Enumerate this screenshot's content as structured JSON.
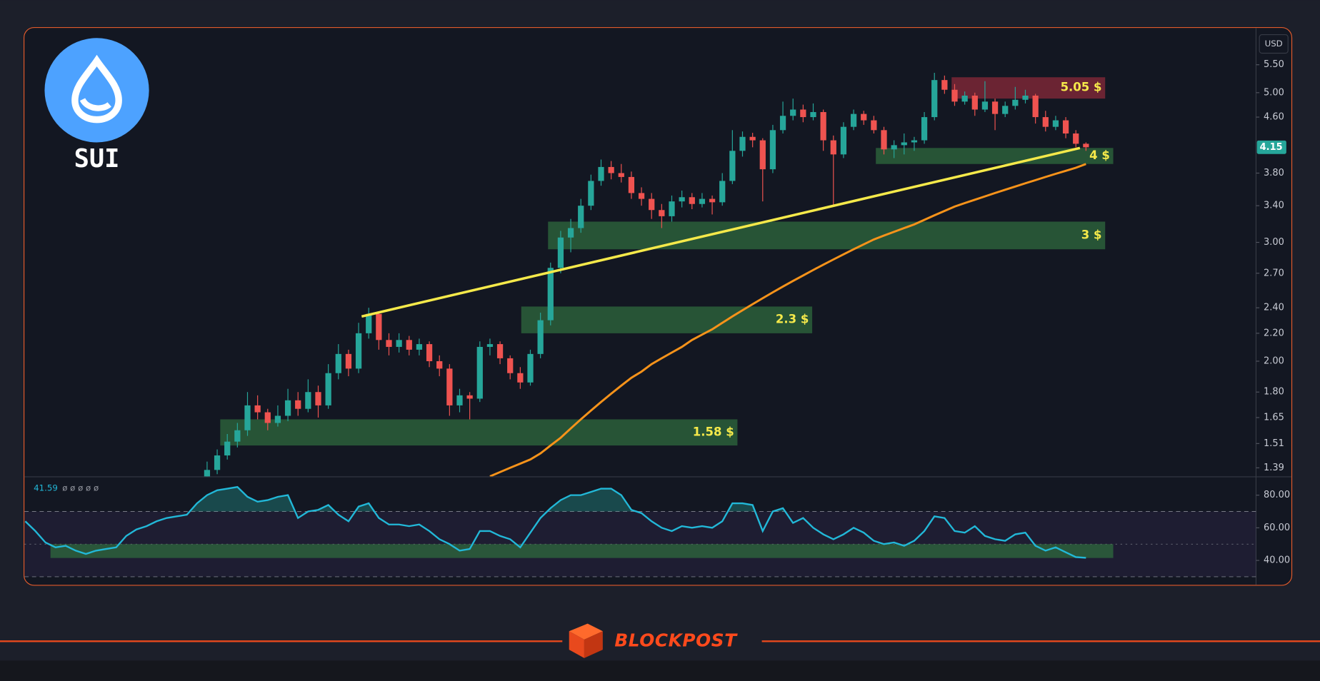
{
  "chart_data": [
    {
      "type": "candlestick",
      "currency": "USD",
      "log_scale": true,
      "ylim": [
        1.35,
        6.2
      ],
      "yticks": [
        {
          "value": 5.5,
          "label": "5.50"
        },
        {
          "value": 5,
          "label": "5.00"
        },
        {
          "value": 4.6,
          "label": "4.60"
        },
        {
          "value": 3.8,
          "label": "3.80"
        },
        {
          "value": 3.4,
          "label": "3.40"
        },
        {
          "value": 3,
          "label": "3.00"
        },
        {
          "value": 2.7,
          "label": "2.70"
        },
        {
          "value": 2.4,
          "label": "2.40"
        },
        {
          "value": 2.2,
          "label": "2.20"
        },
        {
          "value": 2,
          "label": "2.00"
        },
        {
          "value": 1.8,
          "label": "1.80"
        },
        1.65,
        1.51,
        1.39
      ],
      "last_price": 4.15,
      "last_price_color": "#26a69a",
      "up_color": "#26a69a",
      "down_color": "#ef5350",
      "open": [
        null,
        null,
        null,
        null,
        null,
        null,
        null,
        null,
        null,
        null,
        null,
        null,
        null,
        null,
        null,
        null,
        null,
        null,
        1.32,
        1.38,
        1.45,
        1.52,
        1.58,
        1.72,
        1.68,
        1.62,
        1.66,
        1.75,
        1.7,
        1.8,
        1.72,
        1.92,
        2.05,
        1.95,
        2.2,
        2.35,
        2.15,
        2.1,
        2.15,
        2.08,
        2.12,
        2.0,
        1.95,
        1.72,
        1.78,
        1.76,
        2.1,
        2.12,
        2.02,
        1.92,
        1.86,
        2.05,
        2.3,
        2.75,
        3.05,
        3.15,
        3.4,
        3.7,
        3.88,
        3.8,
        3.75,
        3.55,
        3.48,
        3.35,
        3.28,
        3.45,
        3.5,
        3.42,
        3.48,
        3.44,
        3.7,
        4.1,
        4.3,
        4.25,
        3.85,
        4.4,
        4.62,
        4.72,
        4.6,
        4.68,
        4.25,
        4.05,
        4.45,
        4.65,
        4.55,
        4.4,
        4.12,
        4.18,
        4.22,
        4.25,
        4.6,
        5.22,
        5.05,
        4.85,
        4.95,
        4.72,
        4.85,
        4.65,
        4.78,
        4.88,
        4.95,
        4.6,
        4.45,
        4.55,
        4.35,
        4.2
      ],
      "high": [
        null,
        null,
        null,
        null,
        null,
        null,
        null,
        null,
        null,
        null,
        null,
        null,
        null,
        null,
        null,
        null,
        null,
        null,
        1.42,
        1.48,
        1.56,
        1.62,
        1.8,
        1.78,
        1.7,
        1.72,
        1.82,
        1.8,
        1.88,
        1.84,
        1.98,
        2.12,
        2.08,
        2.28,
        2.4,
        2.36,
        2.2,
        2.2,
        2.18,
        2.16,
        2.14,
        2.04,
        1.98,
        1.82,
        1.8,
        2.14,
        2.16,
        2.14,
        2.04,
        1.96,
        2.08,
        2.36,
        2.8,
        3.12,
        3.25,
        3.48,
        3.78,
        3.98,
        3.96,
        3.92,
        3.82,
        3.62,
        3.55,
        3.42,
        3.52,
        3.58,
        3.55,
        3.55,
        3.52,
        3.8,
        4.4,
        4.38,
        4.36,
        4.28,
        4.48,
        4.85,
        4.9,
        4.8,
        4.82,
        4.72,
        4.32,
        4.52,
        4.72,
        4.7,
        4.62,
        4.45,
        4.25,
        4.35,
        4.3,
        4.68,
        5.35,
        5.3,
        5.15,
        5.02,
        5.0,
        5.2,
        4.9,
        4.85,
        5.1,
        5.05,
        4.98,
        4.7,
        4.62,
        4.6,
        4.4,
        4.22
      ],
      "low": [
        null,
        null,
        null,
        null,
        null,
        null,
        null,
        null,
        null,
        null,
        null,
        null,
        null,
        null,
        null,
        null,
        null,
        null,
        1.3,
        1.36,
        1.43,
        1.49,
        1.55,
        1.64,
        1.58,
        1.6,
        1.63,
        1.66,
        1.68,
        1.65,
        1.7,
        1.88,
        1.9,
        1.92,
        2.16,
        2.08,
        2.04,
        2.06,
        2.04,
        2.04,
        1.96,
        1.9,
        1.66,
        1.68,
        1.64,
        1.74,
        2.04,
        1.98,
        1.88,
        1.82,
        1.84,
        2.02,
        2.26,
        2.7,
        2.9,
        3.1,
        3.35,
        3.64,
        3.72,
        3.68,
        3.48,
        3.4,
        3.25,
        3.15,
        3.22,
        3.38,
        3.36,
        3.38,
        3.3,
        3.4,
        3.66,
        4.02,
        4.15,
        3.45,
        3.8,
        4.35,
        4.55,
        4.52,
        4.55,
        4.1,
        3.4,
        4.0,
        4.4,
        4.48,
        4.35,
        4.05,
        4.0,
        4.05,
        4.1,
        4.2,
        4.55,
        4.98,
        4.78,
        4.8,
        4.62,
        4.68,
        4.4,
        4.6,
        4.72,
        4.82,
        4.5,
        4.38,
        4.4,
        4.28,
        4.15,
        4.1
      ],
      "close": [
        null,
        null,
        null,
        null,
        null,
        null,
        null,
        null,
        null,
        null,
        null,
        null,
        null,
        null,
        null,
        null,
        null,
        null,
        1.38,
        1.45,
        1.52,
        1.58,
        1.72,
        1.68,
        1.62,
        1.66,
        1.75,
        1.7,
        1.8,
        1.72,
        1.92,
        2.05,
        1.95,
        2.2,
        2.35,
        2.15,
        2.1,
        2.15,
        2.08,
        2.12,
        2.0,
        1.95,
        1.72,
        1.78,
        1.76,
        2.1,
        2.12,
        2.02,
        1.92,
        1.86,
        2.05,
        2.3,
        2.75,
        3.05,
        3.15,
        3.4,
        3.7,
        3.88,
        3.8,
        3.75,
        3.55,
        3.48,
        3.35,
        3.28,
        3.45,
        3.5,
        3.42,
        3.48,
        3.44,
        3.7,
        4.1,
        4.3,
        4.25,
        3.85,
        4.4,
        4.62,
        4.72,
        4.6,
        4.68,
        4.25,
        4.05,
        4.45,
        4.65,
        4.55,
        4.4,
        4.12,
        4.18,
        4.22,
        4.25,
        4.6,
        5.22,
        5.05,
        4.85,
        4.95,
        4.72,
        4.85,
        4.65,
        4.78,
        4.88,
        4.95,
        4.6,
        4.45,
        4.55,
        4.35,
        4.2,
        4.15
      ],
      "lines": [
        {
          "color": "#f7931a",
          "values": [
            null,
            null,
            null,
            null,
            null,
            null,
            null,
            null,
            null,
            null,
            null,
            null,
            null,
            null,
            null,
            null,
            null,
            null,
            null,
            null,
            null,
            null,
            null,
            null,
            null,
            null,
            null,
            null,
            null,
            null,
            null,
            null,
            null,
            null,
            null,
            null,
            null,
            null,
            null,
            null,
            null,
            null,
            null,
            null,
            null,
            null,
            1.35,
            1.37,
            1.39,
            1.41,
            1.43,
            1.46,
            1.5,
            1.54,
            1.59,
            1.64,
            1.69,
            1.74,
            1.79,
            1.84,
            1.89,
            1.93,
            1.98,
            2.02,
            2.06,
            2.1,
            2.15,
            2.19,
            2.23,
            2.28,
            2.33,
            2.38,
            2.43,
            2.48,
            2.53,
            2.58,
            2.63,
            2.68,
            2.73,
            2.78,
            2.83,
            2.88,
            2.93,
            2.98,
            3.03,
            3.07,
            3.11,
            3.15,
            3.19,
            3.24,
            3.29,
            3.34,
            3.39,
            3.43,
            3.47,
            3.51,
            3.55,
            3.59,
            3.63,
            3.67,
            3.71,
            3.75,
            3.79,
            3.83,
            3.87,
            3.92
          ]
        }
      ],
      "trendline": {
        "color": "#f5e94a",
        "x": [
          33.3,
          104.4
        ],
        "values": [
          2.33,
          4.14
        ]
      },
      "zones": [
        {
          "label": "5.05 $",
          "color": "#8a2a3a",
          "range": [
            4.9,
            5.27
          ],
          "x_range": [
            91.7,
            106.9
          ]
        },
        {
          "label": "4 $",
          "color": "#2f6a3e",
          "range": [
            3.92,
            4.14
          ],
          "x_range": [
            84.2,
            107.7
          ]
        },
        {
          "label": "3 $",
          "color": "#2f6a3e",
          "range": [
            2.93,
            3.22
          ],
          "x_range": [
            51.75,
            106.9
          ]
        },
        {
          "label": "2.3 $",
          "color": "#2f6a3e",
          "range": [
            2.2,
            2.41
          ],
          "x_range": [
            49.1,
            77.9
          ]
        },
        {
          "label": "1.58 $",
          "color": "#2f6a3e",
          "range": [
            1.5,
            1.64
          ],
          "x_range": [
            19.3,
            70.5
          ]
        }
      ]
    },
    {
      "type": "line",
      "color": "#22b8d8",
      "ylim": [
        25,
        91
      ],
      "yticks": [
        {
          "value": 80,
          "label": "80.00"
        },
        {
          "value": 60,
          "label": "60.00"
        },
        {
          "value": 40,
          "label": "40.00"
        }
      ],
      "bands": [
        30,
        70
      ],
      "midline": 50,
      "legend_marks": "ø ø ø ø ø",
      "zone": {
        "color": "#2f6a3e",
        "range": [
          41.5,
          50
        ],
        "x_range": [
          2.5,
          107.7
        ]
      },
      "values": [
        64,
        58,
        51,
        48,
        49,
        46,
        44,
        46,
        47,
        48,
        55,
        59,
        61,
        64,
        66,
        67,
        68,
        75,
        80,
        83,
        84,
        85,
        79,
        76,
        77,
        79,
        80,
        66,
        70,
        71,
        74,
        68,
        64,
        73,
        75,
        66,
        62,
        62,
        61,
        62,
        58,
        53,
        50,
        46,
        47,
        58,
        58,
        55,
        53,
        48,
        57,
        66,
        72,
        77,
        80,
        80,
        82,
        84,
        84,
        80,
        71,
        69,
        64,
        60,
        58,
        61,
        60,
        61,
        60,
        64,
        75,
        75,
        74,
        58,
        70,
        72,
        63,
        66,
        60,
        56,
        53,
        56,
        60,
        57,
        52,
        50,
        51,
        49,
        52,
        58,
        67,
        66,
        58,
        57,
        61,
        55,
        53,
        52,
        56,
        57,
        49,
        46,
        48,
        45,
        42,
        41.59
      ]
    }
  ],
  "logo": {
    "name": "SUI"
  },
  "footer": {
    "brand": "BLOCKPOST"
  }
}
